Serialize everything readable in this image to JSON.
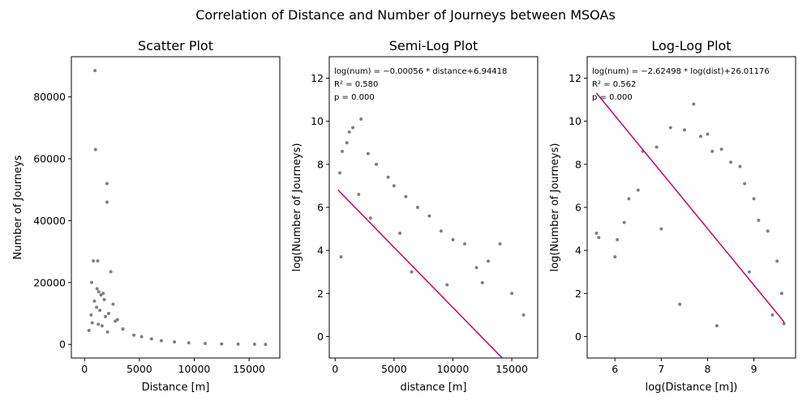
{
  "figure": {
    "suptitle": "Correlation of Distance and Number of Journeys between MSOAs"
  },
  "chart_data": [
    {
      "type": "scatter",
      "title": "Scatter Plot",
      "xlabel": "Distance [m]",
      "ylabel": "Number of Journeys",
      "xlim": [
        -1200,
        17800
      ],
      "ylim": [
        -4400,
        93000
      ],
      "xticks": [
        0,
        5000,
        10000,
        15000
      ],
      "xtick_labels": [
        "0",
        "5000",
        "10000",
        "15000"
      ],
      "yticks": [
        0,
        20000,
        40000,
        60000,
        80000
      ],
      "ytick_labels": [
        "0",
        "20000",
        "40000",
        "60000",
        "80000"
      ],
      "point_color": "#808080",
      "grid": false,
      "x": [
        950,
        1000,
        2050,
        2050,
        1200,
        800,
        650,
        2400,
        1150,
        1300,
        1700,
        1500,
        1800,
        900,
        2600,
        1100,
        1400,
        2200,
        600,
        1900,
        3000,
        2800,
        700,
        1250,
        1600,
        3500,
        400,
        2100,
        4500,
        5200,
        6100,
        7000,
        8200,
        9500,
        11000,
        12500,
        14000,
        15500,
        16500
      ],
      "y": [
        88500,
        63000,
        52000,
        46000,
        27000,
        27000,
        20000,
        23500,
        18000,
        17000,
        16500,
        16000,
        14500,
        14000,
        13000,
        12000,
        11000,
        10000,
        9500,
        9000,
        8000,
        7500,
        7000,
        6500,
        6000,
        5000,
        4500,
        4000,
        3000,
        2500,
        1800,
        1200,
        800,
        500,
        300,
        150,
        80,
        40,
        20
      ]
    },
    {
      "type": "scatter",
      "title": "Semi-Log Plot",
      "xlabel": "distance [m]",
      "ylabel": "log(Number of Journeys)",
      "xlim": [
        -500,
        17200
      ],
      "ylim": [
        -1,
        13
      ],
      "xticks": [
        0,
        5000,
        10000,
        15000
      ],
      "xtick_labels": [
        "0",
        "5000",
        "10000",
        "15000"
      ],
      "yticks": [
        0,
        2,
        4,
        6,
        8,
        10,
        12
      ],
      "ytick_labels": [
        "0",
        "2",
        "4",
        "6",
        "8",
        "10",
        "12"
      ],
      "point_color": "#808080",
      "line_color": "#cc0066",
      "grid": false,
      "annotations": [
        "log(num) = −0.00056 * distance+6.94418",
        "R² = 0.580",
        "p = 0.000"
      ],
      "fit": {
        "slope": -0.00056,
        "intercept": 6.94418,
        "x_range": [
          250,
          14200
        ]
      },
      "x": [
        2200,
        1500,
        1200,
        2800,
        1000,
        600,
        3500,
        400,
        4500,
        2000,
        5000,
        3000,
        6000,
        5500,
        7000,
        8000,
        9000,
        10000,
        11000,
        12000,
        13000,
        14000,
        15000,
        16000,
        500,
        6500,
        9500,
        12500
      ],
      "y": [
        10.1,
        9.7,
        9.5,
        8.5,
        9.0,
        8.6,
        8.0,
        7.6,
        7.4,
        6.6,
        7.0,
        5.5,
        6.5,
        4.8,
        6.0,
        5.6,
        4.9,
        4.5,
        4.3,
        3.2,
        3.5,
        4.3,
        2.0,
        1.0,
        3.7,
        3.0,
        2.4,
        2.5
      ]
    },
    {
      "type": "scatter",
      "title": "Log-Log Plot",
      "xlabel": "log(Distance [m])",
      "ylabel": "log(Number of Journeys)",
      "xlim": [
        5.4,
        9.9
      ],
      "ylim": [
        -1,
        13
      ],
      "xticks": [
        6,
        7,
        8,
        9
      ],
      "xtick_labels": [
        "6",
        "7",
        "8",
        "9"
      ],
      "yticks": [
        0,
        2,
        4,
        6,
        8,
        10,
        12
      ],
      "ytick_labels": [
        "0",
        "2",
        "4",
        "6",
        "8",
        "10",
        "12"
      ],
      "point_color": "#808080",
      "line_color": "#cc0066",
      "grid": false,
      "annotations": [
        "log(num) = −2.62498 * log(dist)+26.01176",
        "R² = 0.562",
        "p = 0.000"
      ],
      "fit": {
        "slope": -2.62498,
        "intercept": 26.01176,
        "x_range": [
          5.6,
          9.65
        ]
      },
      "x": [
        5.6,
        5.65,
        6.0,
        6.05,
        6.2,
        6.3,
        6.6,
        6.9,
        7.2,
        7.5,
        7.7,
        7.85,
        8.0,
        8.1,
        8.3,
        8.5,
        8.7,
        8.8,
        9.0,
        9.1,
        9.3,
        9.5,
        9.6,
        6.5,
        7.0,
        7.4,
        8.2,
        8.9,
        9.4,
        9.65
      ],
      "y": [
        4.8,
        4.6,
        3.7,
        4.5,
        5.3,
        6.4,
        8.6,
        8.8,
        9.7,
        9.6,
        10.8,
        9.3,
        9.4,
        8.6,
        8.7,
        8.1,
        7.9,
        7.1,
        6.4,
        5.4,
        4.9,
        3.5,
        2.0,
        6.8,
        5.0,
        1.5,
        0.5,
        3.0,
        1.0,
        0.6
      ]
    }
  ]
}
